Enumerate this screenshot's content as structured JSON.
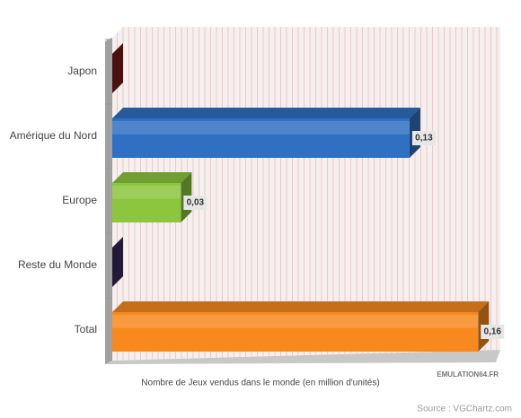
{
  "chart_data": {
    "type": "bar",
    "orientation": "horizontal",
    "categories": [
      "Japon",
      "Amérique du Nord",
      "Europe",
      "Reste du Monde",
      "Total"
    ],
    "values": [
      0,
      0.13,
      0.03,
      0,
      0.16
    ],
    "value_labels": [
      null,
      "0,13",
      "0,03",
      null,
      "0,16"
    ],
    "colors": [
      "#7b1d1d",
      "#2f70c2",
      "#8cc63e",
      "#3b2b5c",
      "#f7891f"
    ],
    "xlim": [
      0,
      0.165
    ],
    "xlabel": "Nombre de Jeux vendus dans le monde (en million d'unités)",
    "source": "Source : VGChartz.com",
    "logo": "EMULATION64.FR"
  }
}
